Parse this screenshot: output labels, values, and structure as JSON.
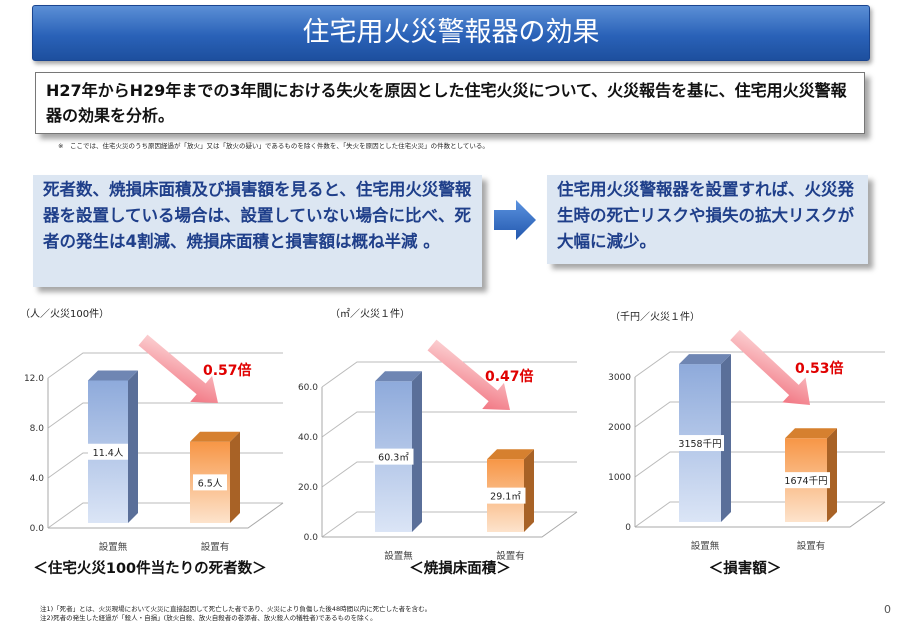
{
  "title": "住宅用火災警報器の効果",
  "intro": "H27年からH29年までの3年間における失火を原因とした住宅火災について、火災報告を基に、住宅用火災警報器の効果を分析。",
  "note": "※　ここでは、住宅火災のうち原因経過が「放火」又は「放火の疑い」であるものを除く件数を、「失火を原因とした住宅火災」の件数としている。",
  "left_box": "死者数、焼損床面積及び損害額を見ると、住宅用火災警報器を設置している場合は、設置していない場合に比べ、死者の発生は4割減、焼損床面積と損害額は概ね半減 。",
  "right_box": "住宅用火災警報器を設置すれば、火災発生時の死亡リスクや損失の拡大リスクが大幅に減少。",
  "colors": {
    "title_bg": "#2a62b8",
    "box_bg": "#dce6f2",
    "box_text": "#1f3f8a",
    "bar_without": "#8eaadb",
    "bar_with": "#f79646",
    "multiplier": "#e00000",
    "arrow": "#2e6bc4"
  },
  "chart_data": [
    {
      "type": "bar",
      "unit": "（人／火災100件）",
      "categories": [
        "設置無",
        "設置有"
      ],
      "values": [
        11.4,
        6.5
      ],
      "value_labels": [
        "11.4人",
        "6.5人"
      ],
      "yticks": [
        "0.0",
        "4.0",
        "8.0",
        "12.0"
      ],
      "ylim": [
        0,
        12
      ],
      "multiplier": "0.57倍",
      "caption": "＜住宅火災100件当たりの死者数＞",
      "grid": true
    },
    {
      "type": "bar",
      "unit": "（㎡／火災１件）",
      "categories": [
        "設置無",
        "設置有"
      ],
      "values": [
        60.3,
        29.1
      ],
      "value_labels": [
        "60.3㎡",
        "29.1㎡"
      ],
      "yticks": [
        "0.0",
        "20.0",
        "40.0",
        "60.0"
      ],
      "ylim": [
        0,
        60
      ],
      "multiplier": "0.47倍",
      "caption": "＜焼損床面積＞",
      "grid": true
    },
    {
      "type": "bar",
      "unit": "（千円／火災１件）",
      "categories": [
        "設置無",
        "設置有"
      ],
      "values": [
        3158,
        1674
      ],
      "value_labels": [
        "3158千円",
        "1674千円"
      ],
      "yticks": [
        "0",
        "1000",
        "2000",
        "3000"
      ],
      "ylim": [
        0,
        3000
      ],
      "multiplier": "0.53倍",
      "caption": "＜損害額＞",
      "grid": true
    }
  ],
  "footnotes": [
    "注1)「死者」とは、火災現場において火災に直接起因して死亡した者であり、火災により負傷した後48時間以内に死亡した者を含む。",
    "注2)死者の発生した経過が「殺人・自損」(放火自殺、放火自殺者の巻添者、放火殺人の犠牲者)であるものを除く。"
  ],
  "page_number": "0"
}
